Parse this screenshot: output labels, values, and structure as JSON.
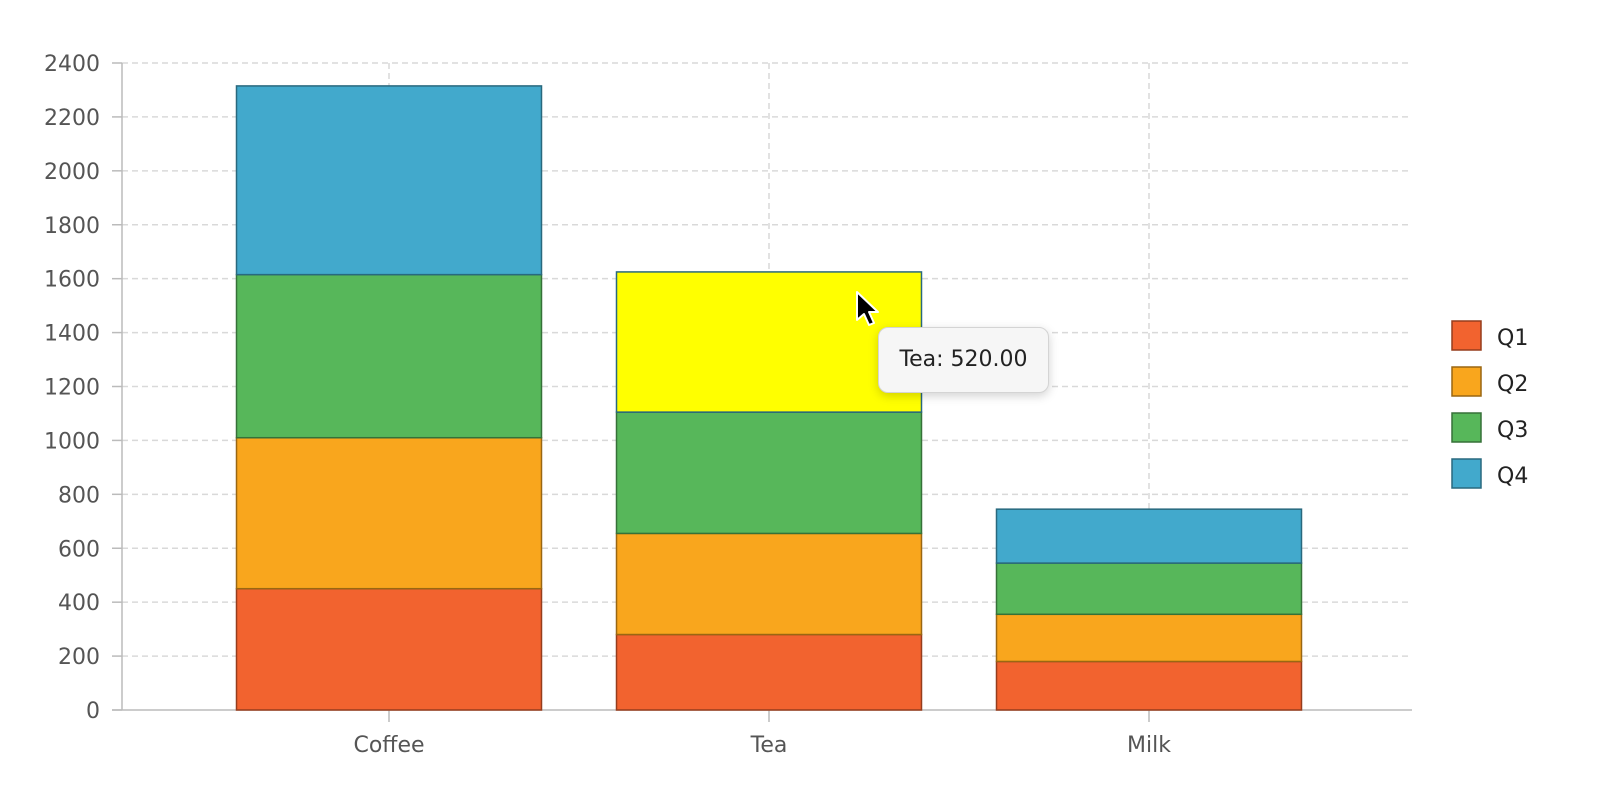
{
  "chart_data": {
    "type": "bar",
    "stacked": true,
    "categories": [
      "Coffee",
      "Tea",
      "Milk"
    ],
    "series": [
      {
        "name": "Q1",
        "color": "#f2632f",
        "values": [
          450,
          280,
          180
        ]
      },
      {
        "name": "Q2",
        "color": "#f9a61d",
        "values": [
          560,
          375,
          175
        ]
      },
      {
        "name": "Q3",
        "color": "#57b75a",
        "values": [
          605,
          450,
          190
        ]
      },
      {
        "name": "Q4",
        "color": "#42a9cc",
        "values": [
          700,
          520,
          200
        ]
      }
    ],
    "highlight": {
      "category": "Tea",
      "series": "Q4",
      "color": "#ffff00"
    },
    "y_ticks": [
      0,
      200,
      400,
      600,
      800,
      1000,
      1200,
      1400,
      1600,
      1800,
      2000,
      2200,
      2400
    ],
    "ylim": [
      0,
      2400
    ],
    "grid": true,
    "legend": {
      "position": "right"
    }
  },
  "tooltip": {
    "text": "Tea: 520.00"
  }
}
